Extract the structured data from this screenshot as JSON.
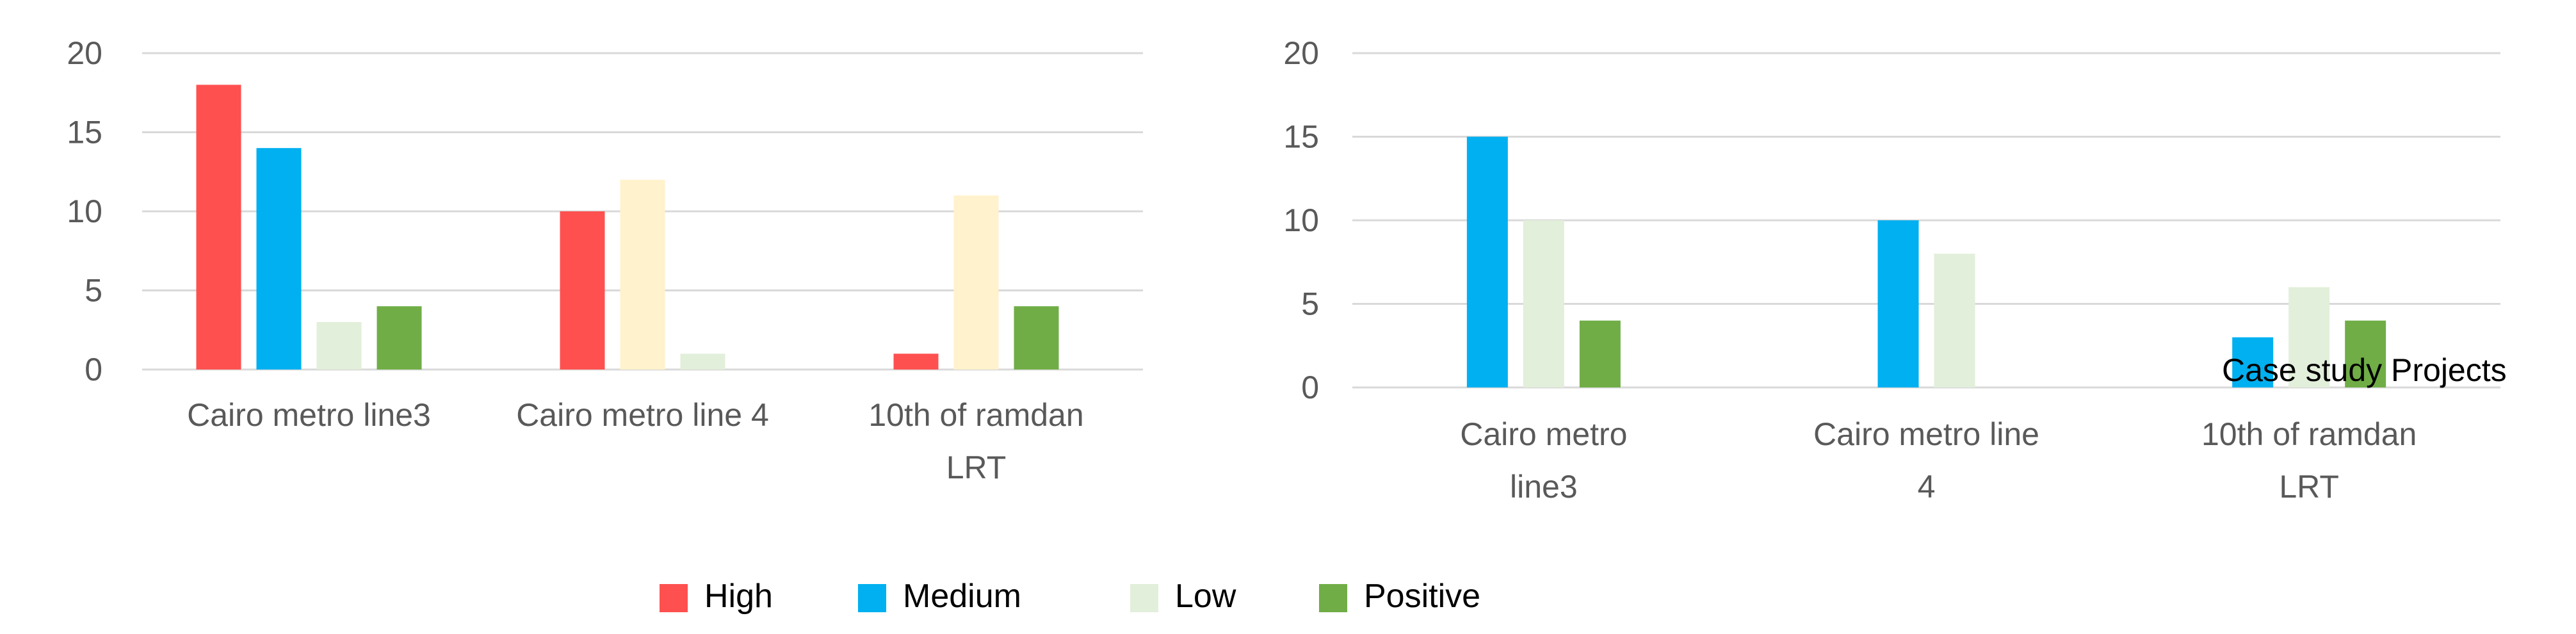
{
  "legend": [
    {
      "name": "High",
      "color": "#ff5050"
    },
    {
      "name": "Medium",
      "color": "#00b0f0"
    },
    {
      "name": "Low",
      "color": "#e2efda"
    },
    {
      "name": "Positive",
      "color": "#70ad47"
    }
  ],
  "chart_data": [
    {
      "type": "bar",
      "categories": [
        [
          "Cairo metro line3"
        ],
        [
          "Cairo metro line 4"
        ],
        [
          "10th of ramdan",
          "LRT"
        ]
      ],
      "ylim": [
        0,
        20
      ],
      "yticks": [
        0,
        5,
        10,
        15,
        20
      ],
      "xlabel": "",
      "ylabel": "",
      "grid": true,
      "series_colors": [
        "#ff5050",
        "#00b0f0",
        "#e2efda",
        "#fff2cc",
        "#70ad47"
      ],
      "bars": [
        [
          {
            "value": 18,
            "color": "#ff5050"
          },
          {
            "value": 14,
            "color": "#00b0f0"
          },
          {
            "value": 3,
            "color": "#e2efda"
          },
          {
            "value": 4,
            "color": "#70ad47"
          }
        ],
        [
          {
            "value": 10,
            "color": "#ff5050"
          },
          {
            "value": 12,
            "color": "#fff2cc"
          },
          {
            "value": 1,
            "color": "#e2efda"
          }
        ],
        [
          {
            "value": 1,
            "color": "#ff5050"
          },
          {
            "value": 11,
            "color": "#fff2cc"
          },
          {
            "value": 4,
            "color": "#70ad47"
          }
        ]
      ]
    },
    {
      "type": "bar",
      "categories": [
        [
          "Cairo metro",
          "line3"
        ],
        [
          "Cairo metro line",
          "4"
        ],
        [
          "10th of ramdan",
          "LRT"
        ]
      ],
      "ylim": [
        0,
        20
      ],
      "yticks": [
        0,
        5,
        10,
        15,
        20
      ],
      "xlabel": "Case study Projects",
      "ylabel": "",
      "grid": true,
      "bars": [
        [
          {
            "value": 15,
            "color": "#00b0f0"
          },
          {
            "value": 10,
            "color": "#e2efda"
          },
          {
            "value": 4,
            "color": "#70ad47"
          }
        ],
        [
          {
            "value": 10,
            "color": "#00b0f0"
          },
          {
            "value": 8,
            "color": "#e2efda"
          }
        ],
        [
          {
            "value": 3,
            "color": "#00b0f0"
          },
          {
            "value": 6,
            "color": "#e2efda"
          },
          {
            "value": 4,
            "color": "#70ad47"
          }
        ]
      ]
    }
  ]
}
